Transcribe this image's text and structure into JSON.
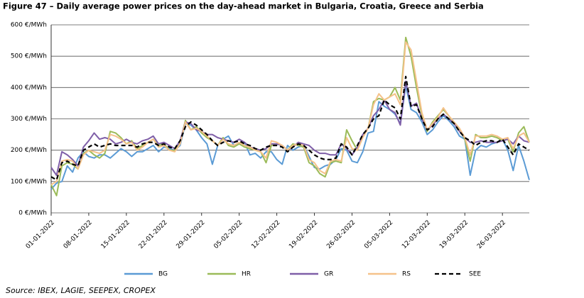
{
  "chart_data": {
    "type": "line",
    "title": "Figure 47 – Daily average power prices on the day-ahead market in Bulgaria, Croatia, Greece and Serbia",
    "source": "Source: IBEX, LAGIE, SEEPEX, CROPEX",
    "categories": [
      "01-01-2022",
      null,
      null,
      null,
      null,
      null,
      null,
      "08-01-2022",
      null,
      null,
      null,
      null,
      null,
      null,
      "15-01-2022",
      null,
      null,
      null,
      null,
      null,
      null,
      "22-01-2022",
      null,
      null,
      null,
      null,
      null,
      null,
      "29-01-2022",
      null,
      null,
      null,
      null,
      null,
      null,
      "05-02-2022",
      null,
      null,
      null,
      null,
      null,
      null,
      "12-02-2022",
      null,
      null,
      null,
      null,
      null,
      null,
      "19-02-2022",
      null,
      null,
      null,
      null,
      null,
      null,
      "26-02-2022",
      null,
      null,
      null,
      null,
      null,
      null,
      "05-03-2022",
      null,
      null,
      null,
      null,
      null,
      null,
      "12-03-2022",
      null,
      null,
      null,
      null,
      null,
      null,
      "19-03-2022",
      null,
      null,
      null,
      null,
      null,
      null,
      "26-03-2022",
      null,
      null,
      null,
      null,
      null
    ],
    "ylim": [
      0,
      600
    ],
    "yticks": [
      {
        "value": 0,
        "label": "0 €/MWh"
      },
      {
        "value": 100,
        "label": "100 €/MWh"
      },
      {
        "value": 200,
        "label": "200 €/MWh"
      },
      {
        "value": 300,
        "label": "300 €/MWh"
      },
      {
        "value": 400,
        "label": "400 €/MWh"
      },
      {
        "value": 500,
        "label": "500 €/MWh"
      },
      {
        "value": 600,
        "label": "600 €/MWh"
      }
    ],
    "grid": true,
    "legend": "bottom",
    "series": [
      {
        "name": "BG",
        "color": "#5b9bd5",
        "dash": false,
        "values": [
          75,
          95,
          100,
          150,
          130,
          175,
          195,
          180,
          175,
          185,
          185,
          175,
          190,
          205,
          195,
          180,
          195,
          195,
          205,
          215,
          195,
          210,
          205,
          200,
          215,
          285,
          280,
          265,
          240,
          220,
          155,
          215,
          235,
          245,
          215,
          220,
          225,
          185,
          190,
          175,
          195,
          195,
          170,
          155,
          215,
          200,
          210,
          215,
          180,
          145,
          140,
          150,
          155,
          170,
          205,
          200,
          165,
          160,
          195,
          255,
          260,
          355,
          340,
          330,
          315,
          285,
          405,
          330,
          320,
          290,
          250,
          265,
          290,
          310,
          295,
          275,
          245,
          235,
          120,
          200,
          215,
          210,
          220,
          225,
          235,
          200,
          135,
          215,
          165,
          105
        ]
      },
      {
        "name": "HR",
        "color": "#9bbb59",
        "dash": false,
        "values": [
          90,
          55,
          150,
          160,
          155,
          140,
          190,
          200,
          185,
          175,
          190,
          260,
          255,
          240,
          220,
          230,
          205,
          215,
          225,
          235,
          215,
          220,
          200,
          200,
          225,
          295,
          265,
          275,
          255,
          240,
          230,
          215,
          240,
          215,
          210,
          220,
          210,
          205,
          200,
          195,
          160,
          215,
          220,
          215,
          200,
          220,
          215,
          210,
          160,
          150,
          125,
          115,
          160,
          165,
          160,
          265,
          230,
          200,
          245,
          270,
          355,
          365,
          360,
          370,
          400,
          360,
          560,
          500,
          400,
          310,
          260,
          290,
          310,
          330,
          310,
          285,
          265,
          235,
          165,
          250,
          240,
          240,
          245,
          240,
          230,
          235,
          195,
          255,
          275,
          225
        ]
      },
      {
        "name": "GR",
        "color": "#7f5fa8",
        "dash": false,
        "values": [
          145,
          120,
          195,
          185,
          170,
          150,
          210,
          230,
          255,
          235,
          240,
          235,
          220,
          225,
          235,
          225,
          220,
          230,
          235,
          245,
          220,
          225,
          215,
          205,
          230,
          290,
          285,
          265,
          260,
          250,
          250,
          240,
          235,
          230,
          225,
          235,
          225,
          210,
          205,
          200,
          205,
          220,
          220,
          215,
          200,
          210,
          225,
          220,
          215,
          200,
          190,
          190,
          185,
          185,
          220,
          205,
          185,
          210,
          250,
          270,
          310,
          330,
          360,
          330,
          320,
          280,
          420,
          340,
          350,
          300,
          265,
          280,
          300,
          315,
          300,
          285,
          260,
          240,
          225,
          225,
          230,
          225,
          225,
          225,
          230,
          235,
          220,
          245,
          230,
          225
        ]
      },
      {
        "name": "RS",
        "color": "#f5c28a",
        "dash": false,
        "values": [
          90,
          100,
          165,
          170,
          165,
          140,
          185,
          200,
          195,
          190,
          200,
          250,
          245,
          235,
          220,
          225,
          200,
          210,
          225,
          235,
          210,
          215,
          200,
          195,
          220,
          290,
          265,
          270,
          260,
          245,
          230,
          215,
          235,
          220,
          215,
          225,
          215,
          210,
          200,
          195,
          175,
          230,
          225,
          215,
          200,
          215,
          220,
          215,
          170,
          160,
          135,
          125,
          165,
          170,
          165,
          240,
          205,
          200,
          240,
          270,
          345,
          380,
          360,
          370,
          380,
          345,
          545,
          520,
          420,
          320,
          265,
          285,
          305,
          335,
          310,
          290,
          270,
          240,
          185,
          245,
          245,
          245,
          250,
          245,
          235,
          240,
          205,
          245,
          255,
          225
        ]
      },
      {
        "name": "SEE",
        "color": "#000000",
        "dash": true,
        "values": [
          115,
          105,
          160,
          165,
          155,
          150,
          200,
          210,
          220,
          210,
          215,
          220,
          215,
          215,
          215,
          215,
          210,
          220,
          225,
          225,
          215,
          220,
          210,
          205,
          230,
          275,
          290,
          280,
          265,
          250,
          230,
          215,
          225,
          230,
          225,
          230,
          220,
          215,
          205,
          200,
          210,
          215,
          215,
          210,
          195,
          210,
          220,
          215,
          200,
          185,
          175,
          170,
          170,
          175,
          220,
          210,
          185,
          215,
          250,
          270,
          300,
          310,
          360,
          345,
          335,
          300,
          435,
          340,
          345,
          300,
          265,
          275,
          300,
          315,
          300,
          285,
          260,
          240,
          230,
          215,
          225,
          230,
          230,
          225,
          235,
          210,
          185,
          220,
          210,
          200
        ]
      }
    ]
  }
}
